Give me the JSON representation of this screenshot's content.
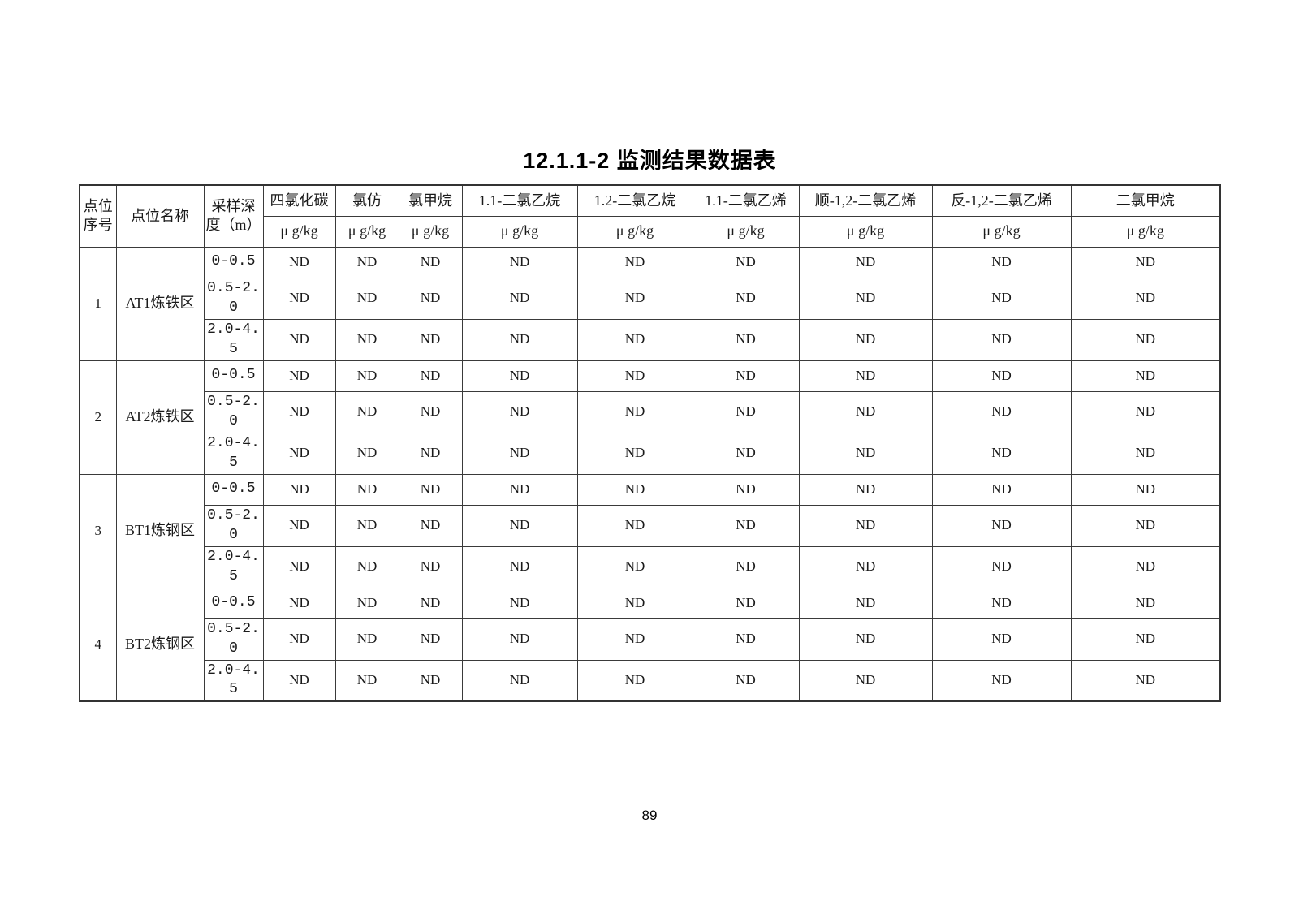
{
  "title": "12.1.1-2 监测结果数据表",
  "footer": {
    "page_number": "89"
  },
  "colors": {
    "text": "#000000",
    "table_border": "#333333",
    "background": "#ffffff"
  },
  "table": {
    "fixed_headers": [
      {
        "id": "point-no",
        "label": "点位\n序号"
      },
      {
        "id": "point-name",
        "label": "点位名称"
      },
      {
        "id": "depth",
        "label": "采样深\n度（m）"
      }
    ],
    "unit": "μ g/kg",
    "analytes": [
      "四氯化碳",
      "氯仿",
      "氯甲烷",
      "1.1-二氯乙烷",
      "1.2-二氯乙烷",
      "1.1-二氯乙烯",
      "顺-1,2-二氯乙烯",
      "反-1,2-二氯乙烯",
      "二氯甲烷"
    ],
    "points": [
      {
        "no": "1",
        "name": "AT1炼铁区",
        "rows": [
          {
            "depth": "0-0.5",
            "values": [
              "ND",
              "ND",
              "ND",
              "ND",
              "ND",
              "ND",
              "ND",
              "ND",
              "ND"
            ]
          },
          {
            "depth": "0.5-2.0",
            "values": [
              "ND",
              "ND",
              "ND",
              "ND",
              "ND",
              "ND",
              "ND",
              "ND",
              "ND"
            ]
          },
          {
            "depth": "2.0-4.5",
            "values": [
              "ND",
              "ND",
              "ND",
              "ND",
              "ND",
              "ND",
              "ND",
              "ND",
              "ND"
            ]
          }
        ]
      },
      {
        "no": "2",
        "name": "AT2炼铁区",
        "rows": [
          {
            "depth": "0-0.5",
            "values": [
              "ND",
              "ND",
              "ND",
              "ND",
              "ND",
              "ND",
              "ND",
              "ND",
              "ND"
            ]
          },
          {
            "depth": "0.5-2.0",
            "values": [
              "ND",
              "ND",
              "ND",
              "ND",
              "ND",
              "ND",
              "ND",
              "ND",
              "ND"
            ]
          },
          {
            "depth": "2.0-4.5",
            "values": [
              "ND",
              "ND",
              "ND",
              "ND",
              "ND",
              "ND",
              "ND",
              "ND",
              "ND"
            ]
          }
        ]
      },
      {
        "no": "3",
        "name": "BT1炼钢区",
        "rows": [
          {
            "depth": "0-0.5",
            "values": [
              "ND",
              "ND",
              "ND",
              "ND",
              "ND",
              "ND",
              "ND",
              "ND",
              "ND"
            ]
          },
          {
            "depth": "0.5-2.0",
            "values": [
              "ND",
              "ND",
              "ND",
              "ND",
              "ND",
              "ND",
              "ND",
              "ND",
              "ND"
            ]
          },
          {
            "depth": "2.0-4.5",
            "values": [
              "ND",
              "ND",
              "ND",
              "ND",
              "ND",
              "ND",
              "ND",
              "ND",
              "ND"
            ]
          }
        ]
      },
      {
        "no": "4",
        "name": "BT2炼钢区",
        "rows": [
          {
            "depth": "0-0.5",
            "values": [
              "ND",
              "ND",
              "ND",
              "ND",
              "ND",
              "ND",
              "ND",
              "ND",
              "ND"
            ]
          },
          {
            "depth": "0.5-2.0",
            "values": [
              "ND",
              "ND",
              "ND",
              "ND",
              "ND",
              "ND",
              "ND",
              "ND",
              "ND"
            ]
          },
          {
            "depth": "2.0-4.5",
            "values": [
              "ND",
              "ND",
              "ND",
              "ND",
              "ND",
              "ND",
              "ND",
              "ND",
              "ND"
            ]
          }
        ]
      }
    ]
  }
}
